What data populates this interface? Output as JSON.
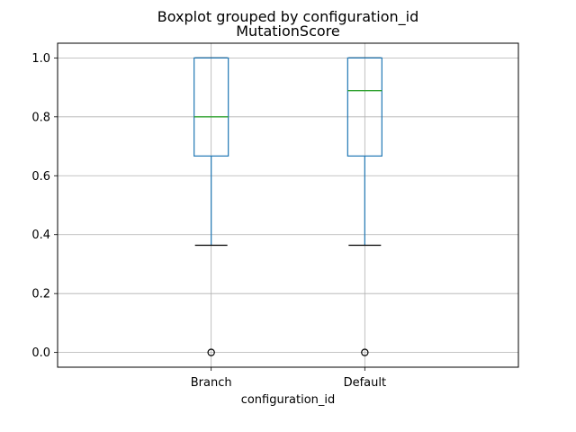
{
  "chart_data": {
    "type": "box",
    "suptitle": "Boxplot grouped by configuration_id",
    "title": "MutationScore",
    "xlabel": "configuration_id",
    "ylabel": "",
    "categories": [
      "Branch",
      "Default"
    ],
    "boxes": [
      {
        "name": "Branch",
        "q1": 0.667,
        "median": 0.8,
        "q3": 1.0,
        "whisker_low": 0.364,
        "whisker_high": 1.0,
        "outliers": [
          0.0
        ]
      },
      {
        "name": "Default",
        "q1": 0.667,
        "median": 0.889,
        "q3": 1.0,
        "whisker_low": 0.364,
        "whisker_high": 1.0,
        "outliers": [
          0.0
        ]
      }
    ],
    "ylim": [
      -0.05,
      1.05
    ],
    "yticks": [
      "0.0",
      "0.2",
      "0.4",
      "0.6",
      "0.8",
      "1.0"
    ],
    "grid": true,
    "colors": {
      "box": "#1f77b4",
      "median": "#2ca02c",
      "grid": "#b0b0b0",
      "cap": "#000000"
    }
  }
}
